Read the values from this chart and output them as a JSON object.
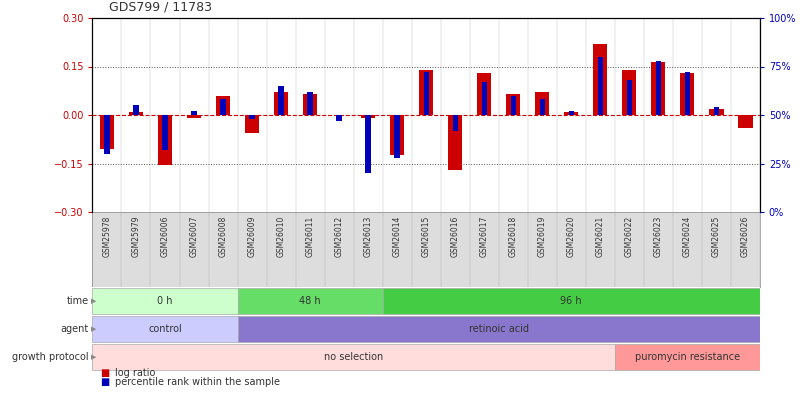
{
  "title": "GDS799 / 11783",
  "samples": [
    "GSM25978",
    "GSM25979",
    "GSM26006",
    "GSM26007",
    "GSM26008",
    "GSM26009",
    "GSM26010",
    "GSM26011",
    "GSM26012",
    "GSM26013",
    "GSM26014",
    "GSM26015",
    "GSM26016",
    "GSM26017",
    "GSM26018",
    "GSM26019",
    "GSM26020",
    "GSM26021",
    "GSM26022",
    "GSM26023",
    "GSM26024",
    "GSM26025",
    "GSM26026"
  ],
  "log_ratio": [
    -0.105,
    0.01,
    -0.155,
    -0.01,
    0.06,
    -0.055,
    0.07,
    0.065,
    0.0,
    -0.01,
    -0.125,
    0.14,
    -0.17,
    0.13,
    0.065,
    0.07,
    0.01,
    0.22,
    0.14,
    0.165,
    0.13,
    0.02,
    -0.04
  ],
  "percentile": [
    30,
    55,
    32,
    52,
    58,
    48,
    65,
    62,
    47,
    20,
    28,
    72,
    42,
    67,
    60,
    58,
    52,
    80,
    68,
    78,
    72,
    54,
    50
  ],
  "ylim_left": [
    -0.3,
    0.3
  ],
  "ylim_right": [
    0,
    100
  ],
  "yticks_left": [
    -0.3,
    -0.15,
    0,
    0.15,
    0.3
  ],
  "yticks_right": [
    0,
    25,
    50,
    75,
    100
  ],
  "bar_color_red": "#cc0000",
  "bar_color_blue": "#0000bb",
  "zero_line_color": "#cc0000",
  "dotted_line_color": "#555555",
  "time_groups": [
    {
      "label": "0 h",
      "start": 0,
      "end": 5,
      "color": "#ccffcc"
    },
    {
      "label": "48 h",
      "start": 5,
      "end": 10,
      "color": "#66dd66"
    },
    {
      "label": "96 h",
      "start": 10,
      "end": 23,
      "color": "#44cc44"
    }
  ],
  "agent_groups": [
    {
      "label": "control",
      "start": 0,
      "end": 5,
      "color": "#ccccff"
    },
    {
      "label": "retinoic acid",
      "start": 5,
      "end": 23,
      "color": "#8877cc"
    }
  ],
  "growth_groups": [
    {
      "label": "no selection",
      "start": 0,
      "end": 18,
      "color": "#ffdddd"
    },
    {
      "label": "puromycin resistance",
      "start": 18,
      "end": 23,
      "color": "#ff9999"
    }
  ],
  "bg_color": "#ffffff",
  "tick_label_color_left": "#cc0000",
  "tick_label_color_right": "#0000bb",
  "xtick_bg_color": "#dddddd",
  "legend_red_label": "log ratio",
  "legend_blue_label": "percentile rank within the sample"
}
